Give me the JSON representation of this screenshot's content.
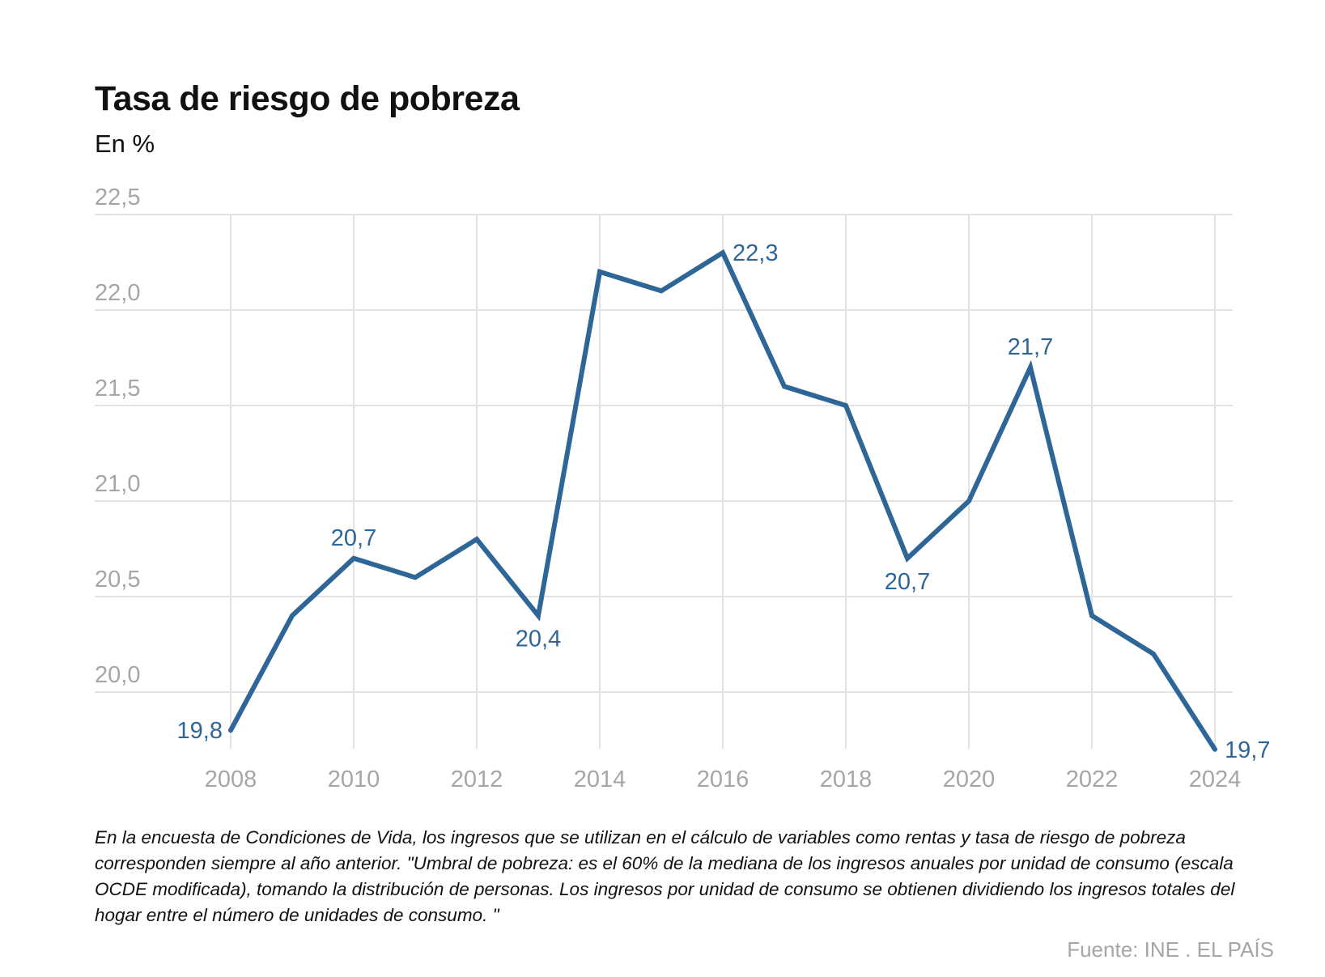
{
  "chart_data": {
    "type": "line",
    "title": "Tasa de riesgo de pobreza",
    "subtitle": "En %",
    "xlabel": "",
    "ylabel": "",
    "x": [
      2008,
      2009,
      2010,
      2011,
      2012,
      2013,
      2014,
      2015,
      2016,
      2017,
      2018,
      2019,
      2020,
      2021,
      2022,
      2023,
      2024
    ],
    "series": [
      {
        "name": "Tasa de riesgo de pobreza",
        "color": "#2e6797",
        "values": [
          19.8,
          20.4,
          20.7,
          20.6,
          20.8,
          20.4,
          22.2,
          22.1,
          22.3,
          21.6,
          21.5,
          20.7,
          21.0,
          21.7,
          20.4,
          20.2,
          19.7
        ]
      }
    ],
    "ylim": [
      19.7,
      22.5
    ],
    "yticks": [
      20.0,
      20.5,
      21.0,
      21.5,
      22.0,
      22.5
    ],
    "ytick_labels": [
      "20,0",
      "20,5",
      "21,0",
      "21,5",
      "22,0",
      "22,5"
    ],
    "xticks": [
      2008,
      2010,
      2012,
      2014,
      2016,
      2018,
      2020,
      2022,
      2024
    ],
    "xtick_labels": [
      "2008",
      "2010",
      "2012",
      "2014",
      "2016",
      "2018",
      "2020",
      "2022",
      "2024"
    ],
    "data_labels": [
      {
        "x": 2008,
        "text": "19,8",
        "position": "left"
      },
      {
        "x": 2010,
        "text": "20,7",
        "position": "above"
      },
      {
        "x": 2013,
        "text": "20,4",
        "position": "below"
      },
      {
        "x": 2016,
        "text": "22,3",
        "position": "right"
      },
      {
        "x": 2019,
        "text": "20,7",
        "position": "below"
      },
      {
        "x": 2021,
        "text": "21,7",
        "position": "above"
      },
      {
        "x": 2024,
        "text": "19,7",
        "position": "right"
      }
    ],
    "grid": true,
    "legend": "none"
  },
  "note": "En la encuesta de Condiciones de Vida, los ingresos que se utilizan en el cálculo de variables como rentas y tasa de riesgo de pobreza corresponden siempre al año anterior. \"Umbral de pobreza: es el 60% de la mediana de los ingresos anuales por unidad de consumo (escala OCDE modificada), tomando la distribución de personas. Los ingresos por unidad de consumo se obtienen dividiendo los ingresos totales del hogar entre el número de unidades de consumo. \"",
  "source": "Fuente: INE . EL PAÍS"
}
